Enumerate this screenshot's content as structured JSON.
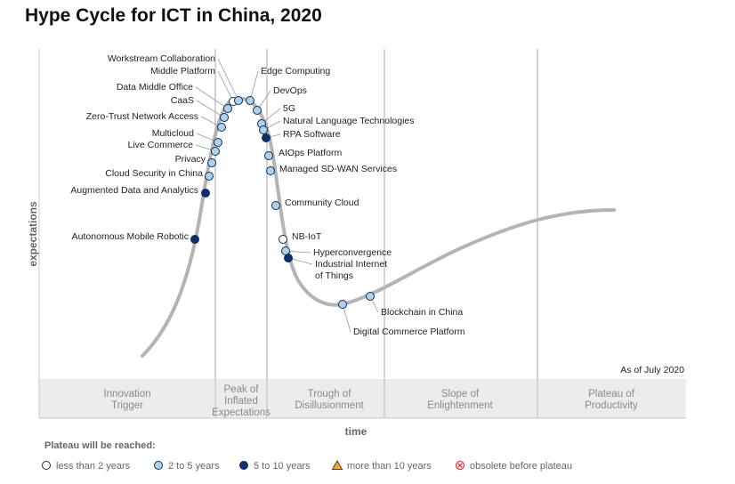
{
  "title": "Hype Cycle for ICT in China, 2020",
  "as_of": "As of July 2020",
  "y_axis_label": "expectations",
  "x_axis_label": "time",
  "phases": [
    {
      "lines": [
        "Innovation",
        "Trigger"
      ]
    },
    {
      "lines": [
        "Peak of",
        "Inflated",
        "Expectations"
      ]
    },
    {
      "lines": [
        "Trough of",
        "Disillusionment"
      ]
    },
    {
      "lines": [
        "Slope of",
        "Enlightenment"
      ]
    },
    {
      "lines": [
        "Plateau of",
        "Productivity"
      ]
    }
  ],
  "legend": {
    "title": "Plateau will be reached:",
    "items": [
      {
        "label": "less than 2 years",
        "marker": "circle",
        "color": "#ffffff"
      },
      {
        "label": "2 to 5 years",
        "marker": "circle",
        "color": "#a9d3f5"
      },
      {
        "label": "5 to 10 years",
        "marker": "circle",
        "color": "#0d2f7a"
      },
      {
        "label": "more than 10 years",
        "marker": "triangle",
        "color": "#f2a93b"
      },
      {
        "label": "obsolete before plateau",
        "marker": "x-circle",
        "color": "#e03a3a"
      }
    ]
  },
  "technologies": [
    {
      "name": "Autonomous Mobile Robotic",
      "category": "5 to 10 years"
    },
    {
      "name": "Augmented Data and Analytics",
      "category": "5 to 10 years"
    },
    {
      "name": "Cloud Security in China",
      "category": "2 to 5 years"
    },
    {
      "name": "Privacy",
      "category": "2 to 5 years"
    },
    {
      "name": "Live Commerce",
      "category": "2 to 5 years"
    },
    {
      "name": "Multicloud",
      "category": "2 to 5 years"
    },
    {
      "name": "Zero-Trust Network Access",
      "category": "2 to 5 years"
    },
    {
      "name": "CaaS",
      "category": "2 to 5 years"
    },
    {
      "name": "Data Middle Office",
      "category": "2 to 5 years"
    },
    {
      "name": "Middle Platform",
      "category": "less than 2 years"
    },
    {
      "name": "Workstream Collaboration",
      "category": "2 to 5 years"
    },
    {
      "name": "Edge Computing",
      "category": "2 to 5 years"
    },
    {
      "name": "DevOps",
      "category": "2 to 5 years"
    },
    {
      "name": "5G",
      "category": "2 to 5 years"
    },
    {
      "name": "Natural Language Technologies",
      "category": "2 to 5 years"
    },
    {
      "name": "RPA Software",
      "category": "5 to 10 years"
    },
    {
      "name": "AIOps Platform",
      "category": "2 to 5 years"
    },
    {
      "name": "Managed SD-WAN Services",
      "category": "2 to 5 years"
    },
    {
      "name": "Community Cloud",
      "category": "2 to 5 years"
    },
    {
      "name": "NB-IoT",
      "category": "less than 2 years"
    },
    {
      "name": "Hyperconvergence",
      "category": "2 to 5 years"
    },
    {
      "name": "Industrial Internet of Things",
      "category": "5 to 10 years"
    },
    {
      "name": "Digital Commerce Platform",
      "category": "2 to 5 years"
    },
    {
      "name": "Blockchain in China",
      "category": "2 to 5 years"
    }
  ]
}
